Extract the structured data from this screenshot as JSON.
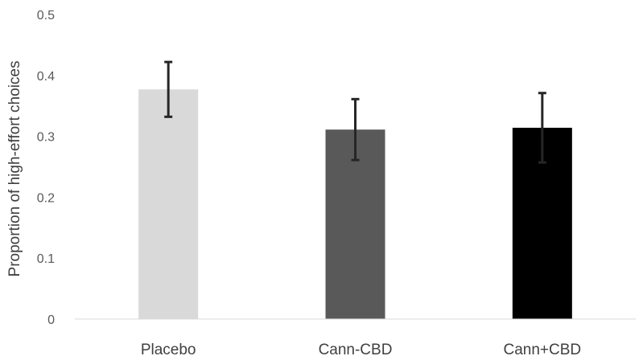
{
  "chart_data": {
    "type": "bar",
    "title": "",
    "xlabel": "",
    "ylabel": "Proportion of high-effort choices",
    "categories": [
      "Placebo",
      "Cann-CBD",
      "Cann+CBD"
    ],
    "values": [
      0.377,
      0.311,
      0.314
    ],
    "error_low": [
      0.332,
      0.261,
      0.257
    ],
    "error_high": [
      0.422,
      0.361,
      0.371
    ],
    "bar_colors": [
      "#d9d9d9",
      "#595959",
      "#000000"
    ],
    "ylim": [
      0,
      0.5
    ],
    "yticks": [
      "0",
      "0.1",
      "0.2",
      "0.3",
      "0.4",
      "0.5"
    ],
    "grid": false,
    "legend": "none"
  }
}
